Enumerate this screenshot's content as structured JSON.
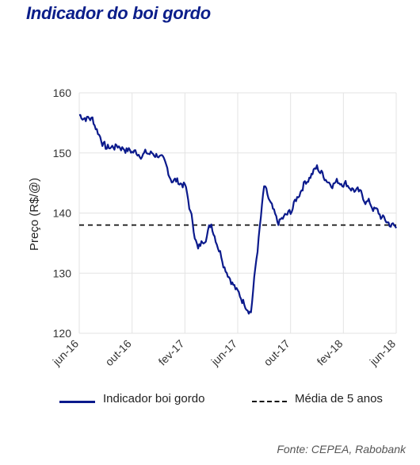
{
  "colors": {
    "series": "#0b1a8c",
    "reference": "#111111",
    "grid": "#e3e3e3",
    "title": "#0b1e8a"
  },
  "source": "Fonte: CEPEA, Rabobank",
  "chart_data": {
    "type": "line",
    "title": "Indicador do boi gordo",
    "ylabel": "Preço (R$/@)",
    "xlabel": "",
    "ylim": [
      120,
      160
    ],
    "yticks": [
      120,
      130,
      140,
      150,
      160
    ],
    "xticks": [
      "jun-16",
      "out-16",
      "fev-17",
      "jun-17",
      "out-17",
      "fev-18",
      "jun-18"
    ],
    "grid": true,
    "legend_position": "bottom",
    "series": [
      {
        "name": "Indicador boi gordo",
        "x_start": "jun-16",
        "x_end": "jun-18",
        "y_monthly": [
          156.3,
          155.6,
          150.8,
          151.2,
          150.2,
          149.9,
          149.8,
          145.7,
          144.7,
          133.8,
          138.2,
          131.4,
          126.6,
          123.8,
          144.2,
          138.2,
          140.1,
          145.0,
          147.5,
          145.1,
          145.3,
          143.6,
          141.6,
          139.0,
          137.5
        ]
      }
    ],
    "reference_lines": [
      {
        "name": "Média de 5 anos",
        "y": 138,
        "style": "dashed"
      }
    ]
  }
}
